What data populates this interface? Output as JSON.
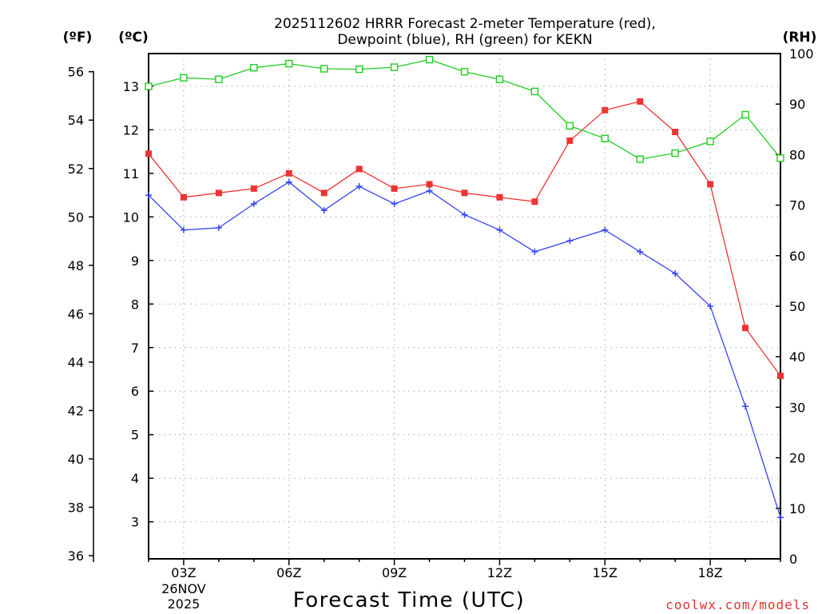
{
  "chart_data": {
    "type": "line",
    "title": "2025112602 HRRR Forecast 2-meter Temperature (red),",
    "subtitle": "Dewpoint (blue), RH (green) for KEKN",
    "xlabel": "Forecast Time (UTC)",
    "credit": "coolwx.com/models",
    "left_axis_f": {
      "unit_label": "(ºF)",
      "ticks": [
        36,
        38,
        40,
        42,
        44,
        46,
        48,
        50,
        52,
        54,
        56
      ]
    },
    "left_axis_c": {
      "unit_label": "(ºC)",
      "ticks": [
        3,
        4,
        5,
        6,
        7,
        8,
        9,
        10,
        11,
        12,
        13
      ],
      "ylim": [
        2.15,
        13.75
      ]
    },
    "right_axis_rh": {
      "unit_label": "(RH)",
      "ticks": [
        0,
        10,
        20,
        30,
        40,
        50,
        60,
        70,
        80,
        90,
        100
      ],
      "ylim": [
        0,
        100
      ]
    },
    "x_hours": [
      2,
      3,
      4,
      5,
      6,
      7,
      8,
      9,
      10,
      11,
      12,
      13,
      14,
      15,
      16,
      17,
      18,
      19,
      20
    ],
    "x_ticks": [
      {
        "hour": 3,
        "label": "03Z",
        "date": "26NOV",
        "year": "2025"
      },
      {
        "hour": 6,
        "label": "06Z"
      },
      {
        "hour": 9,
        "label": "09Z"
      },
      {
        "hour": 12,
        "label": "12Z"
      },
      {
        "hour": 15,
        "label": "15Z"
      },
      {
        "hour": 18,
        "label": "18Z"
      }
    ],
    "grid": true,
    "series": [
      {
        "name": "Temperature",
        "axis": "c",
        "color": "#ee3333",
        "marker": "filled-square",
        "values": [
          11.45,
          10.45,
          10.55,
          10.65,
          11.0,
          10.55,
          11.1,
          10.65,
          10.75,
          10.55,
          10.45,
          10.35,
          11.75,
          12.45,
          12.65,
          11.95,
          10.75,
          7.45,
          6.35
        ]
      },
      {
        "name": "Dewpoint",
        "axis": "c",
        "color": "#3344ee",
        "marker": "plus",
        "values": [
          10.5,
          9.7,
          9.75,
          10.3,
          10.8,
          10.15,
          10.7,
          10.3,
          10.6,
          10.05,
          9.7,
          9.2,
          9.45,
          9.7,
          9.2,
          8.7,
          7.95,
          5.65,
          3.1
        ]
      },
      {
        "name": "RH",
        "axis": "rh",
        "color": "#22cc22",
        "marker": "open-square",
        "values": [
          93.5,
          95.2,
          94.9,
          97.2,
          98.0,
          97.0,
          96.9,
          97.3,
          98.8,
          96.4,
          94.9,
          92.5,
          85.7,
          83.2,
          79.1,
          80.3,
          82.6,
          87.9,
          79.3
        ]
      }
    ]
  }
}
